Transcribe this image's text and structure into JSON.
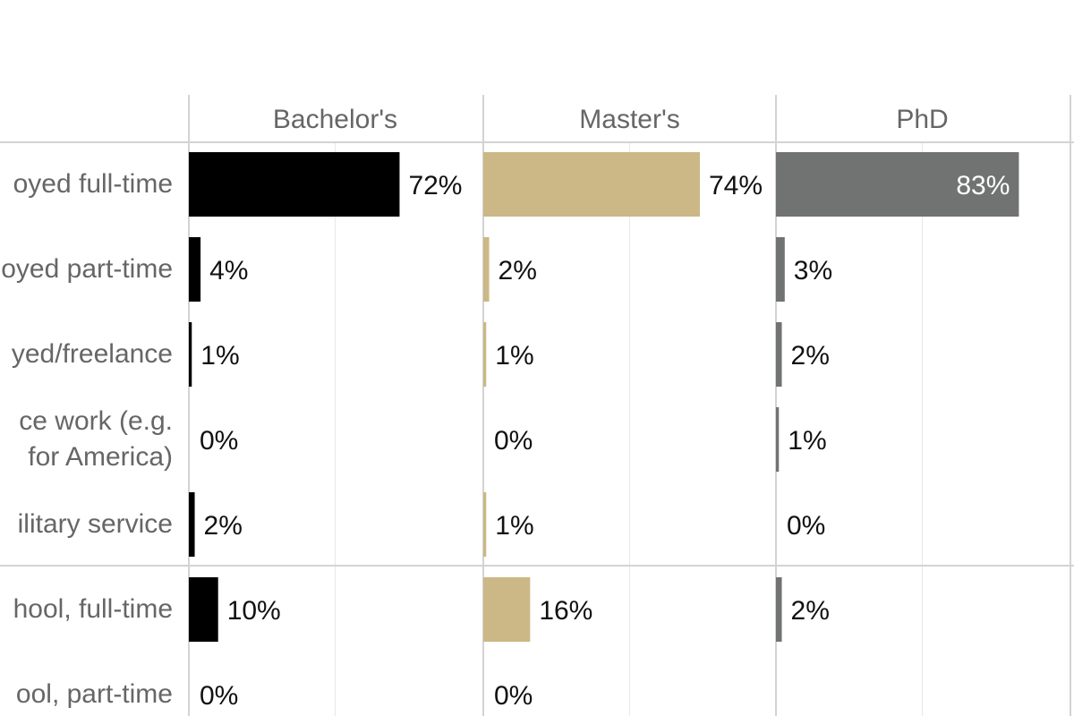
{
  "chart_data": {
    "type": "bar",
    "orientation": "horizontal",
    "layout": "small-multiples",
    "columns": [
      "Bachelor's",
      "Master's",
      "PhD"
    ],
    "categories": [
      "oyed full-time",
      "oyed part-time",
      "yed/freelance",
      "ce work (e.g.\n for America)",
      "ilitary service",
      "hool, full-time",
      "ool, part-time"
    ],
    "series": [
      {
        "values": [
          72,
          4,
          1,
          0,
          2,
          10,
          0
        ],
        "labels": [
          "72%",
          "4%",
          "1%",
          "0%",
          "2%",
          "10%",
          "0%"
        ],
        "color": "#000000"
      },
      {
        "values": [
          74,
          2,
          1,
          0,
          1,
          16,
          0
        ],
        "labels": [
          "74%",
          "2%",
          "1%",
          "0%",
          "1%",
          "16%",
          "0%"
        ],
        "color": "#cbb886"
      },
      {
        "values": [
          83,
          3,
          2,
          1,
          0,
          2,
          null
        ],
        "labels": [
          "83%",
          "3%",
          "2%",
          "1%",
          "0%",
          "2%",
          ""
        ],
        "color": "#707372"
      }
    ],
    "xlim": [
      0,
      100
    ],
    "grid": true,
    "row_separator_after": 4
  }
}
